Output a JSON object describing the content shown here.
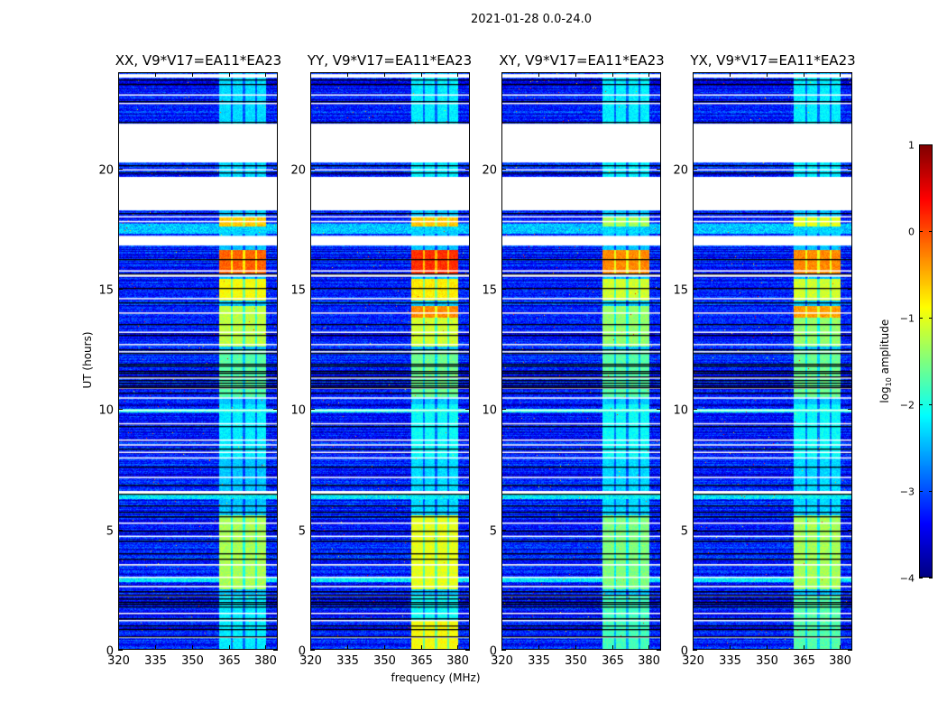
{
  "chart_data": {
    "type": "heatmap",
    "title": "2021-01-28 0.0-24.0",
    "xlabel": "frequency (MHz)",
    "ylabel": "UT (hours)",
    "xlim": [
      320,
      385
    ],
    "ylim": [
      0,
      24
    ],
    "xticks": [
      320,
      335,
      350,
      365,
      380
    ],
    "yticks": [
      0,
      5,
      10,
      15,
      20
    ],
    "background_log_amp": -3.2,
    "rfi_band_mhz": [
      361,
      380
    ],
    "rfi_subband_dividers_mhz": [
      366,
      371,
      376
    ],
    "flagged_gaps_ut": [
      [
        23.77,
        23.92
      ],
      [
        23.04,
        23.08
      ],
      [
        22.68,
        22.73
      ],
      [
        20.25,
        21.86
      ],
      [
        19.93,
        19.97
      ],
      [
        18.26,
        19.65
      ],
      [
        17.98,
        18.02
      ],
      [
        17.78,
        17.82
      ],
      [
        16.8,
        17.2
      ],
      [
        15.73,
        15.77
      ],
      [
        15.5,
        15.6
      ],
      [
        14.58,
        14.62
      ],
      [
        13.98,
        14.02
      ],
      [
        13.18,
        13.22
      ],
      [
        12.67,
        12.71
      ],
      [
        12.37,
        12.41
      ],
      [
        11.28,
        11.32
      ],
      [
        10.86,
        10.9
      ],
      [
        10.45,
        10.49
      ],
      [
        9.93,
        9.98
      ],
      [
        9.38,
        9.42
      ],
      [
        8.7,
        8.74
      ],
      [
        8.5,
        8.54
      ],
      [
        8.19,
        8.23
      ],
      [
        7.95,
        8.0
      ],
      [
        7.15,
        7.19
      ],
      [
        6.45,
        6.6
      ],
      [
        5.25,
        5.29
      ],
      [
        4.7,
        4.74
      ],
      [
        3.5,
        3.56
      ],
      [
        3.0,
        3.04
      ],
      [
        2.62,
        2.66
      ],
      [
        2.25,
        2.29
      ],
      [
        1.5,
        1.54
      ],
      [
        1.2,
        1.24
      ],
      [
        0.5,
        0.54
      ]
    ],
    "black_rows_ut": [
      23.7,
      23.5,
      22.8,
      21.95,
      20.15,
      19.85,
      18.15,
      16.25,
      15.65,
      15.05,
      14.45,
      13.55,
      13.1,
      12.5,
      12.35,
      11.9,
      11.8,
      11.6,
      11.5,
      11.35,
      11.2,
      11.1,
      11.0,
      10.9,
      10.7,
      9.3,
      8.35,
      7.6,
      6.85,
      6.5,
      6.0,
      5.75,
      5.55,
      4.95,
      4.55,
      4.0,
      3.8,
      2.45,
      2.3,
      2.15,
      2.0,
      1.9,
      1.8,
      1.3,
      1.0,
      0.85,
      0.55
    ],
    "bright_rows_ut": [
      [
        17.3,
        17.7,
        -2.4
      ],
      [
        9.85,
        10.0,
        -2.0
      ],
      [
        6.25,
        6.45,
        -2.2
      ],
      [
        2.8,
        3.0,
        -2.2
      ]
    ],
    "panels": [
      {
        "title": "XX, V9*V17=EA11*EA23",
        "rfi_segments": [
          [
            18.3,
            23.8,
            -2.3
          ],
          [
            17.6,
            18.0,
            -0.6
          ],
          [
            15.6,
            16.6,
            -0.1
          ],
          [
            14.5,
            15.4,
            -0.9
          ],
          [
            12.6,
            14.3,
            -1.2
          ],
          [
            10.5,
            12.5,
            -1.7
          ],
          [
            8.0,
            10.2,
            -2.2
          ],
          [
            5.7,
            8.0,
            -2.4
          ],
          [
            2.5,
            5.6,
            -1.3
          ],
          [
            0,
            2.3,
            -2.2
          ]
        ]
      },
      {
        "title": "YY, V9*V17=EA11*EA23",
        "rfi_segments": [
          [
            18.3,
            23.8,
            -2.2
          ],
          [
            17.6,
            18.0,
            -0.6
          ],
          [
            15.6,
            16.6,
            0.15
          ],
          [
            14.5,
            15.4,
            -0.8
          ],
          [
            13.8,
            14.3,
            -0.3
          ],
          [
            12.6,
            13.8,
            -1.1
          ],
          [
            10.5,
            12.5,
            -1.6
          ],
          [
            8.0,
            10.2,
            -2.1
          ],
          [
            5.7,
            8.0,
            -2.3
          ],
          [
            2.5,
            5.6,
            -1.0
          ],
          [
            1.2,
            2.3,
            -2.1
          ],
          [
            0,
            1.2,
            -0.9
          ]
        ]
      },
      {
        "title": "XY, V9*V17=EA11*EA23",
        "rfi_segments": [
          [
            18.3,
            23.8,
            -2.2
          ],
          [
            17.6,
            18.0,
            -1.3
          ],
          [
            15.6,
            16.6,
            -0.3
          ],
          [
            14.5,
            15.4,
            -1.1
          ],
          [
            12.6,
            14.3,
            -1.4
          ],
          [
            10.5,
            12.5,
            -1.7
          ],
          [
            8.0,
            10.2,
            -2.1
          ],
          [
            5.7,
            8.0,
            -2.3
          ],
          [
            2.5,
            5.6,
            -1.5
          ],
          [
            0,
            2.3,
            -1.8
          ]
        ]
      },
      {
        "title": "YX, V9*V17=EA11*EA23",
        "rfi_segments": [
          [
            18.3,
            23.8,
            -2.2
          ],
          [
            17.6,
            18.0,
            -1.0
          ],
          [
            15.6,
            16.6,
            -0.3
          ],
          [
            14.5,
            15.4,
            -1.1
          ],
          [
            13.8,
            14.3,
            -0.4
          ],
          [
            12.6,
            13.8,
            -1.4
          ],
          [
            10.5,
            12.5,
            -1.6
          ],
          [
            8.0,
            10.2,
            -2.1
          ],
          [
            5.7,
            8.0,
            -2.3
          ],
          [
            2.5,
            5.6,
            -1.3
          ],
          [
            0,
            2.3,
            -1.7
          ]
        ]
      }
    ],
    "colorbar": {
      "label_base": "log",
      "label_sub": "10",
      "label_rest": " amplitude",
      "range": [
        -4,
        1
      ],
      "ticks": [
        -4,
        -3,
        -2,
        -1,
        0,
        1
      ],
      "tick_labels": [
        "−4",
        "−3",
        "−2",
        "−1",
        "0",
        "1"
      ],
      "colormap": "jet"
    }
  }
}
